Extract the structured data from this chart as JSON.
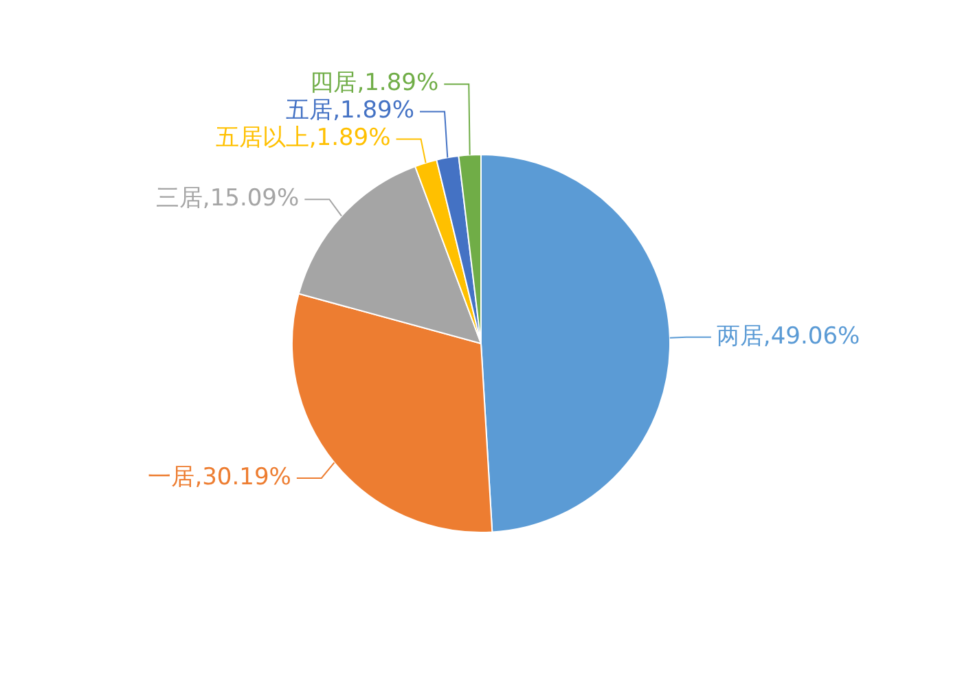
{
  "chart_data": {
    "type": "pie",
    "categories": [
      "两居",
      "一居",
      "三居",
      "五居以上",
      "五居",
      "四居"
    ],
    "values": [
      49.06,
      30.19,
      15.09,
      1.89,
      1.89,
      1.89
    ],
    "colors": [
      "#5b9bd5",
      "#ed7d31",
      "#a5a5a5",
      "#ffc000",
      "#4472c4",
      "#70ad47"
    ],
    "value_labels": [
      "49.06%",
      "30.19%",
      "15.09%",
      "1.89%",
      "1.89%",
      "1.89%"
    ],
    "legend": false
  }
}
